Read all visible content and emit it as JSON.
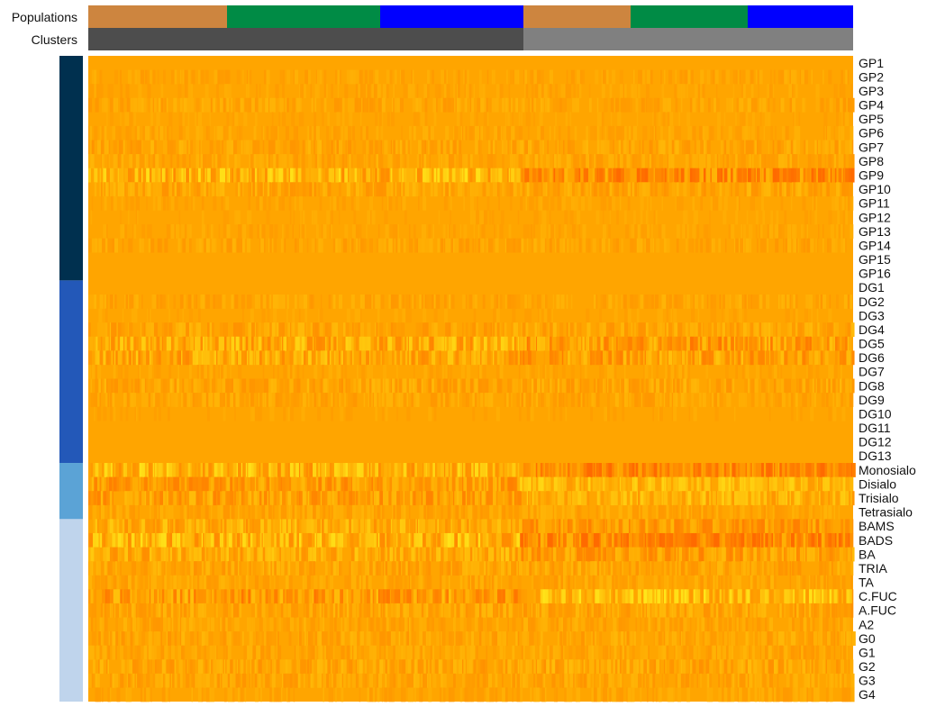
{
  "chart_data": {
    "type": "heatmap",
    "title": "",
    "annotation_track_labels": [
      "Populations",
      "Clusters"
    ],
    "populations": {
      "cluster1": [
        "#cd853f",
        "#008b45",
        "#0000ff"
      ],
      "cluster2": [
        "#cd853f",
        "#008b45",
        "#0000ff"
      ]
    },
    "clusters": [
      {
        "color": "#4d4d4d"
      },
      {
        "color": "#808080"
      }
    ],
    "row_groups": [
      {
        "color": "#00304f",
        "rows": [
          "GP1",
          "GP2",
          "GP3",
          "GP4",
          "GP5",
          "GP6",
          "GP7",
          "GP8",
          "GP9",
          "GP10",
          "GP11",
          "GP12",
          "GP13",
          "GP14",
          "GP15",
          "GP16"
        ]
      },
      {
        "color": "#2358b8",
        "rows": [
          "DG1",
          "DG2",
          "DG3",
          "DG4",
          "DG5",
          "DG6",
          "DG7",
          "DG8",
          "DG9",
          "DG10",
          "DG11",
          "DG12",
          "DG13"
        ]
      },
      {
        "color": "#5ba3d6",
        "rows": [
          "Monosialo",
          "Disialo",
          "Trisialo",
          "Tetrasialo"
        ]
      },
      {
        "color": "#bfd4ec",
        "rows": [
          "BAMS",
          "BADS",
          "BA",
          "TRIA",
          "TA",
          "C.FUC",
          "A.FUC",
          "A2",
          "G0",
          "G1",
          "G2",
          "G3",
          "G4"
        ]
      }
    ],
    "row_labels": [
      "GP1",
      "GP2",
      "GP3",
      "GP4",
      "GP5",
      "GP6",
      "GP7",
      "GP8",
      "GP9",
      "GP10",
      "GP11",
      "GP12",
      "GP13",
      "GP14",
      "GP15",
      "GP16",
      "DG1",
      "DG2",
      "DG3",
      "DG4",
      "DG5",
      "DG6",
      "DG7",
      "DG8",
      "DG9",
      "DG10",
      "DG11",
      "DG12",
      "DG13",
      "Monosialo",
      "Disialo",
      "Trisialo",
      "Tetrasialo",
      "BAMS",
      "BADS",
      "BA",
      "TRIA",
      "TA",
      "C.FUC",
      "A.FUC",
      "A2",
      "G0",
      "G1",
      "G2",
      "G3",
      "G4"
    ],
    "colors": {
      "base": "#ffa500",
      "low": "#ff6a00",
      "high": "#ffe61a"
    },
    "row_profiles": [
      0.05,
      0.12,
      0.1,
      0.15,
      0.08,
      0.12,
      0.18,
      0.15,
      0.45,
      0.2,
      0.1,
      0.08,
      0.1,
      0.15,
      0.05,
      0.05,
      0.05,
      0.15,
      0.08,
      0.2,
      0.4,
      0.35,
      0.1,
      0.2,
      0.15,
      0.08,
      0.05,
      0.05,
      0.05,
      0.45,
      0.3,
      0.3,
      0.15,
      0.3,
      0.45,
      0.3,
      0.2,
      0.15,
      0.4,
      0.2,
      0.15,
      0.18,
      0.15,
      0.22,
      0.18,
      0.12
    ],
    "cluster_shift": [
      0,
      0,
      0,
      0,
      0,
      0,
      0,
      0,
      -0.6,
      0,
      0,
      0,
      0,
      0,
      0,
      0,
      0,
      0,
      0,
      0,
      -0.3,
      -0.2,
      0,
      0,
      0,
      0,
      0,
      0,
      0,
      -0.7,
      0.6,
      0.4,
      0,
      -0.4,
      -0.7,
      -0.3,
      0,
      0,
      0.6,
      0,
      0,
      0,
      0,
      0,
      0,
      0
    ],
    "columns_per_block": [
      120,
      135,
      125,
      95,
      105,
      95
    ]
  }
}
